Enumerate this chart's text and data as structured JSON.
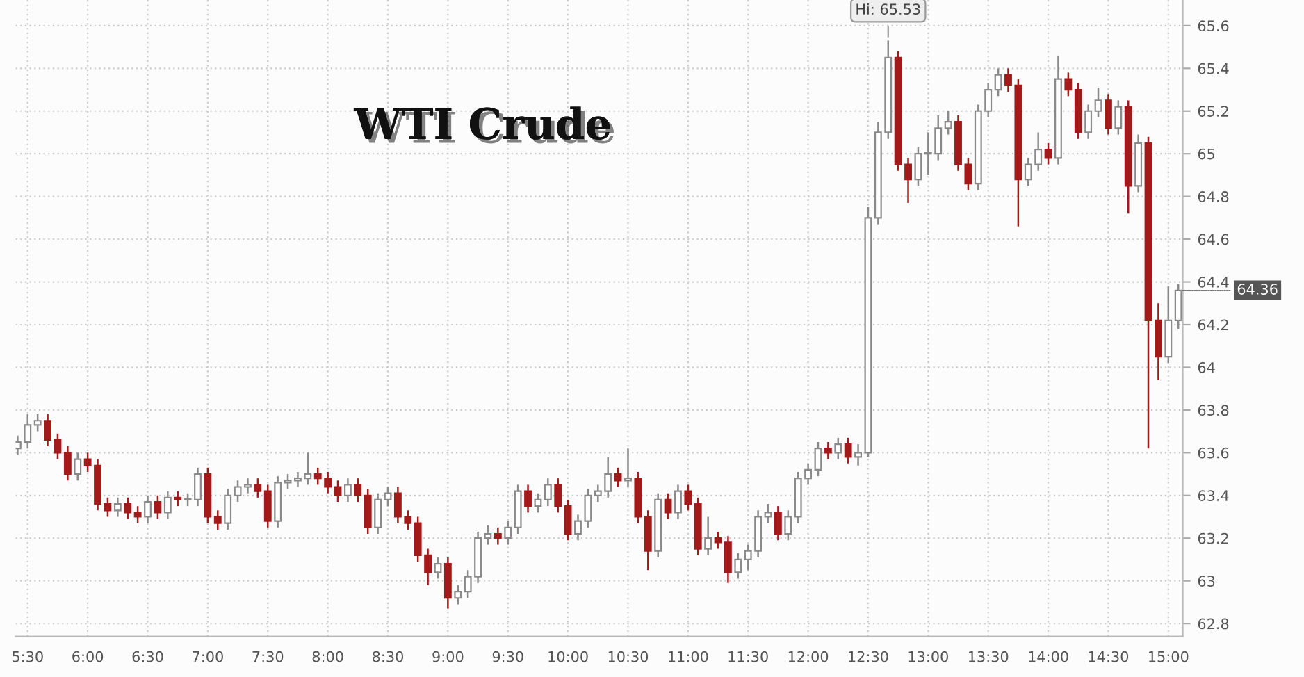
{
  "chart_data": {
    "type": "candlestick",
    "title": "WTI Crude",
    "x": [
      5.4167,
      5.5,
      5.5833,
      5.6667,
      5.75,
      5.8333,
      5.9167,
      6,
      6.0833,
      6.1667,
      6.25,
      6.3333,
      6.4167,
      6.5,
      6.5833,
      6.6667,
      6.75,
      6.8333,
      6.9167,
      7,
      7.0833,
      7.1667,
      7.25,
      7.3333,
      7.4167,
      7.5,
      7.5833,
      7.6667,
      7.75,
      7.8333,
      7.9167,
      8,
      8.0833,
      8.1667,
      8.25,
      8.3333,
      8.4167,
      8.5,
      8.5833,
      8.6667,
      8.75,
      8.8333,
      8.9167,
      9,
      9.0833,
      9.1667,
      9.25,
      9.3333,
      9.4167,
      9.5,
      9.5833,
      9.6667,
      9.75,
      9.8333,
      9.9167,
      10,
      10.0833,
      10.1667,
      10.25,
      10.3333,
      10.4167,
      10.5,
      10.5833,
      10.6667,
      10.75,
      10.8333,
      10.9167,
      11,
      11.0833,
      11.1667,
      11.25,
      11.3333,
      11.4167,
      11.5,
      11.5833,
      11.6667,
      11.75,
      11.8333,
      11.9167,
      12,
      12.0833,
      12.1667,
      12.25,
      12.3333,
      12.4167,
      12.5,
      12.5833,
      12.6667,
      12.75,
      12.8333,
      12.9167,
      13,
      13.0833,
      13.1667,
      13.25,
      13.3333,
      13.4167,
      13.5,
      13.5833,
      13.6667,
      13.75,
      13.8333,
      13.9167,
      14,
      14.0833,
      14.1667,
      14.25,
      14.3333,
      14.4167,
      14.5,
      14.5833,
      14.6667,
      14.75,
      14.8333,
      14.9167,
      15,
      15.0833
    ],
    "ohlc": [
      [
        63.62,
        63.68,
        63.59,
        63.65
      ],
      [
        63.65,
        63.78,
        63.62,
        63.73
      ],
      [
        63.73,
        63.78,
        63.7,
        63.75
      ],
      [
        63.75,
        63.78,
        63.63,
        63.66
      ],
      [
        63.66,
        63.69,
        63.57,
        63.6
      ],
      [
        63.6,
        63.63,
        63.47,
        63.5
      ],
      [
        63.5,
        63.6,
        63.47,
        63.57
      ],
      [
        63.57,
        63.6,
        63.51,
        63.54
      ],
      [
        63.54,
        63.57,
        63.33,
        63.36
      ],
      [
        63.36,
        63.39,
        63.3,
        63.33
      ],
      [
        63.33,
        63.39,
        63.3,
        63.36
      ],
      [
        63.36,
        63.39,
        63.29,
        63.32
      ],
      [
        63.32,
        63.35,
        63.27,
        63.3
      ],
      [
        63.3,
        63.4,
        63.27,
        63.37
      ],
      [
        63.37,
        63.4,
        63.29,
        63.32
      ],
      [
        63.32,
        63.42,
        63.29,
        63.39
      ],
      [
        63.39,
        63.42,
        63.35,
        63.38
      ],
      [
        63.38,
        63.41,
        63.35,
        63.38
      ],
      [
        63.38,
        63.53,
        63.35,
        63.5
      ],
      [
        63.5,
        63.53,
        63.27,
        63.3
      ],
      [
        63.3,
        63.33,
        63.24,
        63.27
      ],
      [
        63.27,
        63.43,
        63.24,
        63.4
      ],
      [
        63.4,
        63.47,
        63.37,
        63.44
      ],
      [
        63.44,
        63.48,
        63.41,
        63.45
      ],
      [
        63.45,
        63.48,
        63.39,
        63.42
      ],
      [
        63.42,
        63.45,
        63.25,
        63.28
      ],
      [
        63.28,
        63.49,
        63.25,
        63.46
      ],
      [
        63.46,
        63.5,
        63.43,
        63.47
      ],
      [
        63.47,
        63.51,
        63.44,
        63.48
      ],
      [
        63.48,
        63.6,
        63.45,
        63.5
      ],
      [
        63.5,
        63.53,
        63.45,
        63.48
      ],
      [
        63.48,
        63.51,
        63.41,
        63.44
      ],
      [
        63.44,
        63.47,
        63.37,
        63.4
      ],
      [
        63.4,
        63.48,
        63.37,
        63.45
      ],
      [
        63.45,
        63.48,
        63.37,
        63.4
      ],
      [
        63.4,
        63.43,
        63.22,
        63.25
      ],
      [
        63.25,
        63.41,
        63.22,
        63.38
      ],
      [
        63.38,
        63.44,
        63.35,
        63.41
      ],
      [
        63.41,
        63.44,
        63.27,
        63.3
      ],
      [
        63.3,
        63.33,
        63.24,
        63.27
      ],
      [
        63.27,
        63.3,
        63.09,
        63.12
      ],
      [
        63.12,
        63.15,
        62.98,
        63.04
      ],
      [
        63.04,
        63.11,
        63.01,
        63.08
      ],
      [
        63.08,
        63.11,
        62.87,
        62.92
      ],
      [
        62.92,
        62.98,
        62.89,
        62.95
      ],
      [
        62.95,
        63.05,
        62.92,
        63.02
      ],
      [
        63.02,
        63.23,
        62.99,
        63.2
      ],
      [
        63.2,
        63.26,
        63.17,
        63.22
      ],
      [
        63.22,
        63.25,
        63.17,
        63.2
      ],
      [
        63.2,
        63.28,
        63.17,
        63.25
      ],
      [
        63.25,
        63.45,
        63.22,
        63.42
      ],
      [
        63.42,
        63.45,
        63.32,
        63.35
      ],
      [
        63.35,
        63.41,
        63.32,
        63.38
      ],
      [
        63.38,
        63.48,
        63.35,
        63.45
      ],
      [
        63.45,
        63.48,
        63.32,
        63.35
      ],
      [
        63.35,
        63.38,
        63.19,
        63.22
      ],
      [
        63.22,
        63.31,
        63.19,
        63.28
      ],
      [
        63.28,
        63.43,
        63.25,
        63.4
      ],
      [
        63.4,
        63.45,
        63.37,
        63.42
      ],
      [
        63.42,
        63.58,
        63.39,
        63.5
      ],
      [
        63.5,
        63.53,
        63.44,
        63.47
      ],
      [
        63.47,
        63.62,
        63.44,
        63.48
      ],
      [
        63.48,
        63.51,
        63.27,
        63.3
      ],
      [
        63.3,
        63.33,
        63.05,
        63.14
      ],
      [
        63.14,
        63.41,
        63.11,
        63.38
      ],
      [
        63.38,
        63.41,
        63.29,
        63.32
      ],
      [
        63.32,
        63.45,
        63.29,
        63.42
      ],
      [
        63.42,
        63.45,
        63.33,
        63.36
      ],
      [
        63.36,
        63.39,
        63.12,
        63.15
      ],
      [
        63.15,
        63.3,
        63.12,
        63.2
      ],
      [
        63.2,
        63.23,
        63.15,
        63.18
      ],
      [
        63.18,
        63.21,
        62.99,
        63.04
      ],
      [
        63.04,
        63.13,
        63.01,
        63.1
      ],
      [
        63.1,
        63.17,
        63.05,
        63.14
      ],
      [
        63.14,
        63.33,
        63.11,
        63.3
      ],
      [
        63.3,
        63.36,
        63.27,
        63.32
      ],
      [
        63.32,
        63.35,
        63.19,
        63.22
      ],
      [
        63.22,
        63.33,
        63.19,
        63.3
      ],
      [
        63.3,
        63.51,
        63.27,
        63.48
      ],
      [
        63.48,
        63.55,
        63.45,
        63.52
      ],
      [
        63.52,
        63.65,
        63.49,
        63.62
      ],
      [
        63.62,
        63.65,
        63.57,
        63.6
      ],
      [
        63.6,
        63.67,
        63.57,
        63.64
      ],
      [
        63.64,
        63.67,
        63.55,
        63.58
      ],
      [
        63.58,
        63.64,
        63.54,
        63.6
      ],
      [
        63.6,
        64.75,
        63.58,
        64.7
      ],
      [
        64.7,
        65.15,
        64.67,
        65.1
      ],
      [
        65.1,
        65.53,
        65.07,
        65.45
      ],
      [
        65.45,
        65.48,
        64.92,
        64.95
      ],
      [
        64.95,
        64.98,
        64.77,
        64.88
      ],
      [
        64.88,
        65.03,
        64.85,
        65.0
      ],
      [
        65.0,
        65.1,
        64.9,
        65.0
      ],
      [
        65.0,
        65.18,
        64.97,
        65.12
      ],
      [
        65.12,
        65.2,
        65.09,
        65.15
      ],
      [
        65.15,
        65.18,
        64.92,
        64.95
      ],
      [
        64.95,
        64.98,
        64.83,
        64.86
      ],
      [
        64.86,
        65.23,
        64.83,
        65.2
      ],
      [
        65.2,
        65.33,
        65.17,
        65.3
      ],
      [
        65.3,
        65.4,
        65.27,
        65.37
      ],
      [
        65.37,
        65.4,
        65.29,
        65.32
      ],
      [
        65.32,
        65.35,
        64.66,
        64.88
      ],
      [
        64.88,
        64.98,
        64.85,
        64.95
      ],
      [
        64.95,
        65.1,
        64.92,
        65.02
      ],
      [
        65.02,
        65.05,
        64.95,
        64.98
      ],
      [
        64.98,
        65.46,
        64.95,
        65.35
      ],
      [
        65.35,
        65.38,
        65.27,
        65.3
      ],
      [
        65.3,
        65.33,
        65.07,
        65.1
      ],
      [
        65.1,
        65.23,
        65.07,
        65.2
      ],
      [
        65.2,
        65.31,
        65.17,
        65.25
      ],
      [
        65.25,
        65.28,
        65.09,
        65.12
      ],
      [
        65.12,
        65.25,
        65.09,
        65.22
      ],
      [
        65.22,
        65.25,
        64.72,
        64.85
      ],
      [
        64.85,
        65.09,
        64.82,
        65.05
      ],
      [
        65.05,
        65.08,
        63.62,
        64.22
      ],
      [
        64.22,
        64.3,
        63.94,
        64.05
      ],
      [
        64.05,
        64.38,
        64.02,
        64.22
      ],
      [
        64.22,
        64.39,
        64.18,
        64.36
      ]
    ],
    "colors": [
      "#8a8a8a",
      "#8a8a8a",
      "#8a8a8a",
      "#a31a1a",
      "#a31a1a",
      "#a31a1a",
      "#8a8a8a",
      "#a31a1a",
      "#a31a1a",
      "#a31a1a",
      "#8a8a8a",
      "#a31a1a",
      "#a31a1a",
      "#8a8a8a",
      "#a31a1a",
      "#8a8a8a",
      "#a31a1a",
      "#8a8a8a",
      "#8a8a8a",
      "#a31a1a",
      "#a31a1a",
      "#8a8a8a",
      "#8a8a8a",
      "#8a8a8a",
      "#a31a1a",
      "#a31a1a",
      "#8a8a8a",
      "#8a8a8a",
      "#8a8a8a",
      "#8a8a8a",
      "#a31a1a",
      "#a31a1a",
      "#a31a1a",
      "#8a8a8a",
      "#a31a1a",
      "#a31a1a",
      "#8a8a8a",
      "#8a8a8a",
      "#a31a1a",
      "#a31a1a",
      "#a31a1a",
      "#a31a1a",
      "#8a8a8a",
      "#a31a1a",
      "#8a8a8a",
      "#8a8a8a",
      "#8a8a8a",
      "#8a8a8a",
      "#a31a1a",
      "#8a8a8a",
      "#8a8a8a",
      "#a31a1a",
      "#8a8a8a",
      "#8a8a8a",
      "#a31a1a",
      "#a31a1a",
      "#8a8a8a",
      "#8a8a8a",
      "#8a8a8a",
      "#8a8a8a",
      "#a31a1a",
      "#8a8a8a",
      "#a31a1a",
      "#a31a1a",
      "#8a8a8a",
      "#a31a1a",
      "#8a8a8a",
      "#a31a1a",
      "#a31a1a",
      "#8a8a8a",
      "#a31a1a",
      "#a31a1a",
      "#8a8a8a",
      "#8a8a8a",
      "#8a8a8a",
      "#8a8a8a",
      "#a31a1a",
      "#8a8a8a",
      "#8a8a8a",
      "#8a8a8a",
      "#8a8a8a",
      "#a31a1a",
      "#8a8a8a",
      "#a31a1a",
      "#8a8a8a",
      "#8a8a8a",
      "#8a8a8a",
      "#8a8a8a",
      "#a31a1a",
      "#a31a1a",
      "#8a8a8a",
      "#8a8a8a",
      "#8a8a8a",
      "#8a8a8a",
      "#a31a1a",
      "#a31a1a",
      "#8a8a8a",
      "#8a8a8a",
      "#8a8a8a",
      "#a31a1a",
      "#a31a1a",
      "#8a8a8a",
      "#8a8a8a",
      "#a31a1a",
      "#8a8a8a",
      "#a31a1a",
      "#a31a1a",
      "#8a8a8a",
      "#8a8a8a",
      "#a31a1a",
      "#8a8a8a",
      "#a31a1a",
      "#8a8a8a",
      "#a31a1a",
      "#a31a1a",
      "#8a8a8a",
      "#8a8a8a"
    ],
    "xlim": [
      5.4,
      15.12
    ],
    "xticks": [
      {
        "value": 5.5,
        "label": "5:30"
      },
      {
        "value": 6,
        "label": "6:00"
      },
      {
        "value": 6.5,
        "label": "6:30"
      },
      {
        "value": 7,
        "label": "7:00"
      },
      {
        "value": 7.5,
        "label": "7:30"
      },
      {
        "value": 8,
        "label": "8:00"
      },
      {
        "value": 8.5,
        "label": "8:30"
      },
      {
        "value": 9,
        "label": "9:00"
      },
      {
        "value": 9.5,
        "label": "9:30"
      },
      {
        "value": 10,
        "label": "10:00"
      },
      {
        "value": 10.5,
        "label": "10:30"
      },
      {
        "value": 11,
        "label": "11:00"
      },
      {
        "value": 11.5,
        "label": "11:30"
      },
      {
        "value": 12,
        "label": "12:00"
      },
      {
        "value": 12.5,
        "label": "12:30"
      },
      {
        "value": 13,
        "label": "13:00"
      },
      {
        "value": 13.5,
        "label": "13:30"
      },
      {
        "value": 14,
        "label": "14:00"
      },
      {
        "value": 14.5,
        "label": "14:30"
      },
      {
        "value": 15,
        "label": "15:00"
      }
    ],
    "ylim": [
      62.74,
      65.72
    ],
    "yticks": [
      62.8,
      63,
      63.2,
      63.4,
      63.6,
      63.8,
      64,
      64.2,
      64.4,
      64.6,
      64.8,
      65,
      65.2,
      65.4,
      65.6
    ],
    "grid": true,
    "annotations": [
      {
        "text": "Hi: 65.53",
        "x": 12.6667,
        "y": 65.53
      },
      {
        "text": "64.36",
        "x": 15.0833,
        "y": 64.36
      }
    ]
  }
}
